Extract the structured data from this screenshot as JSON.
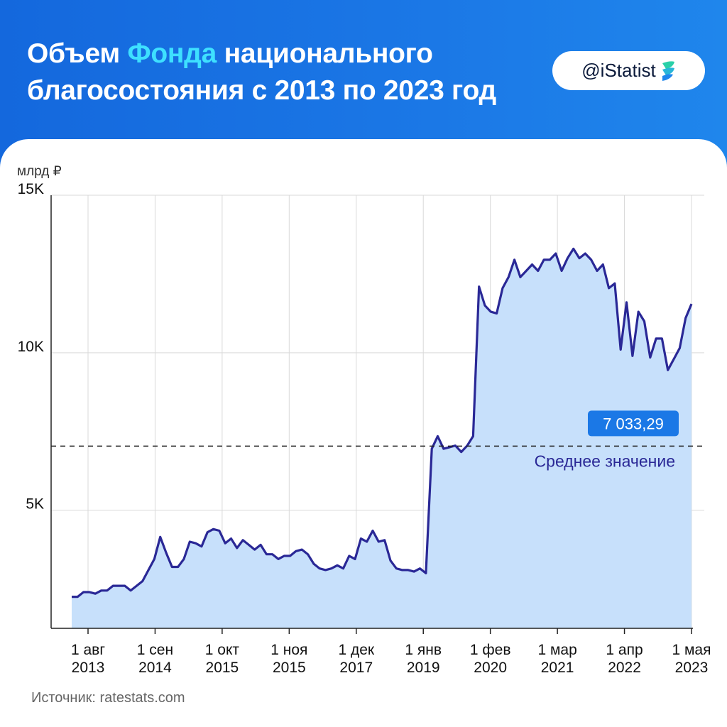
{
  "header": {
    "title_part1": "Объем ",
    "title_accent": "Фонда",
    "title_part2": " национального благосостояния с 2013 по 2023 год",
    "handle": "@iStatist",
    "accent_color": "#3ee0ff",
    "background_color": "#1a73e0"
  },
  "footer": {
    "source": "Источник: ratestats.com"
  },
  "chart_data": {
    "type": "area",
    "unit_label": "млрд ₽",
    "y_ticks": [
      {
        "value": 5000,
        "label": "5K"
      },
      {
        "value": 10000,
        "label": "10K"
      },
      {
        "value": 15000,
        "label": "15K"
      }
    ],
    "ylim": [
      1250,
      15000
    ],
    "x_ticks": [
      {
        "line1": "1 авг",
        "line2": "2013"
      },
      {
        "line1": "1 сен",
        "line2": "2014"
      },
      {
        "line1": "1 окт",
        "line2": "2015"
      },
      {
        "line1": "1 ноя",
        "line2": "2015"
      },
      {
        "line1": "1 дек",
        "line2": "2017"
      },
      {
        "line1": "1 янв",
        "line2": "2019"
      },
      {
        "line1": "1 фев",
        "line2": "2020"
      },
      {
        "line1": "1 мар",
        "line2": "2021"
      },
      {
        "line1": "1 апр",
        "line2": "2022"
      },
      {
        "line1": "1 мая",
        "line2": "2023"
      }
    ],
    "series": [
      {
        "values": [
          2250,
          2250,
          2400,
          2400,
          2350,
          2450,
          2450,
          2600,
          2600,
          2600,
          2450,
          2600,
          2750,
          3100,
          3450,
          4150,
          3650,
          3200,
          3200,
          3450,
          4000,
          3950,
          3850,
          4300,
          4400,
          4350,
          3950,
          4100,
          3800,
          4050,
          3900,
          3750,
          3900,
          3600,
          3600,
          3450,
          3550,
          3550,
          3700,
          3750,
          3600,
          3300,
          3150,
          3100,
          3150,
          3250,
          3150,
          3550,
          3450,
          4100,
          4000,
          4350,
          4000,
          4050,
          3400,
          3150,
          3100,
          3100,
          3050,
          3150,
          3000,
          6950,
          7350,
          6950,
          7000,
          7050,
          6850,
          7050,
          7350,
          12100,
          11500,
          11300,
          11250,
          12050,
          12400,
          12950,
          12400,
          12600,
          12800,
          12600,
          12950,
          12950,
          13150,
          12600,
          13000,
          13300,
          13000,
          13150,
          12950,
          12600,
          12800,
          12050,
          12200,
          10100,
          11600,
          9900,
          11300,
          11000,
          9850,
          10450,
          10450,
          9450,
          9800,
          10150,
          11100,
          11550
        ],
        "color": "#2a2896",
        "fill": "#c7e0fb"
      }
    ],
    "reference_line": {
      "value": 7033.29,
      "value_label": "7 033,29",
      "label": "Среднее значение"
    },
    "grid": true,
    "accent_color": "#1b78e6"
  }
}
